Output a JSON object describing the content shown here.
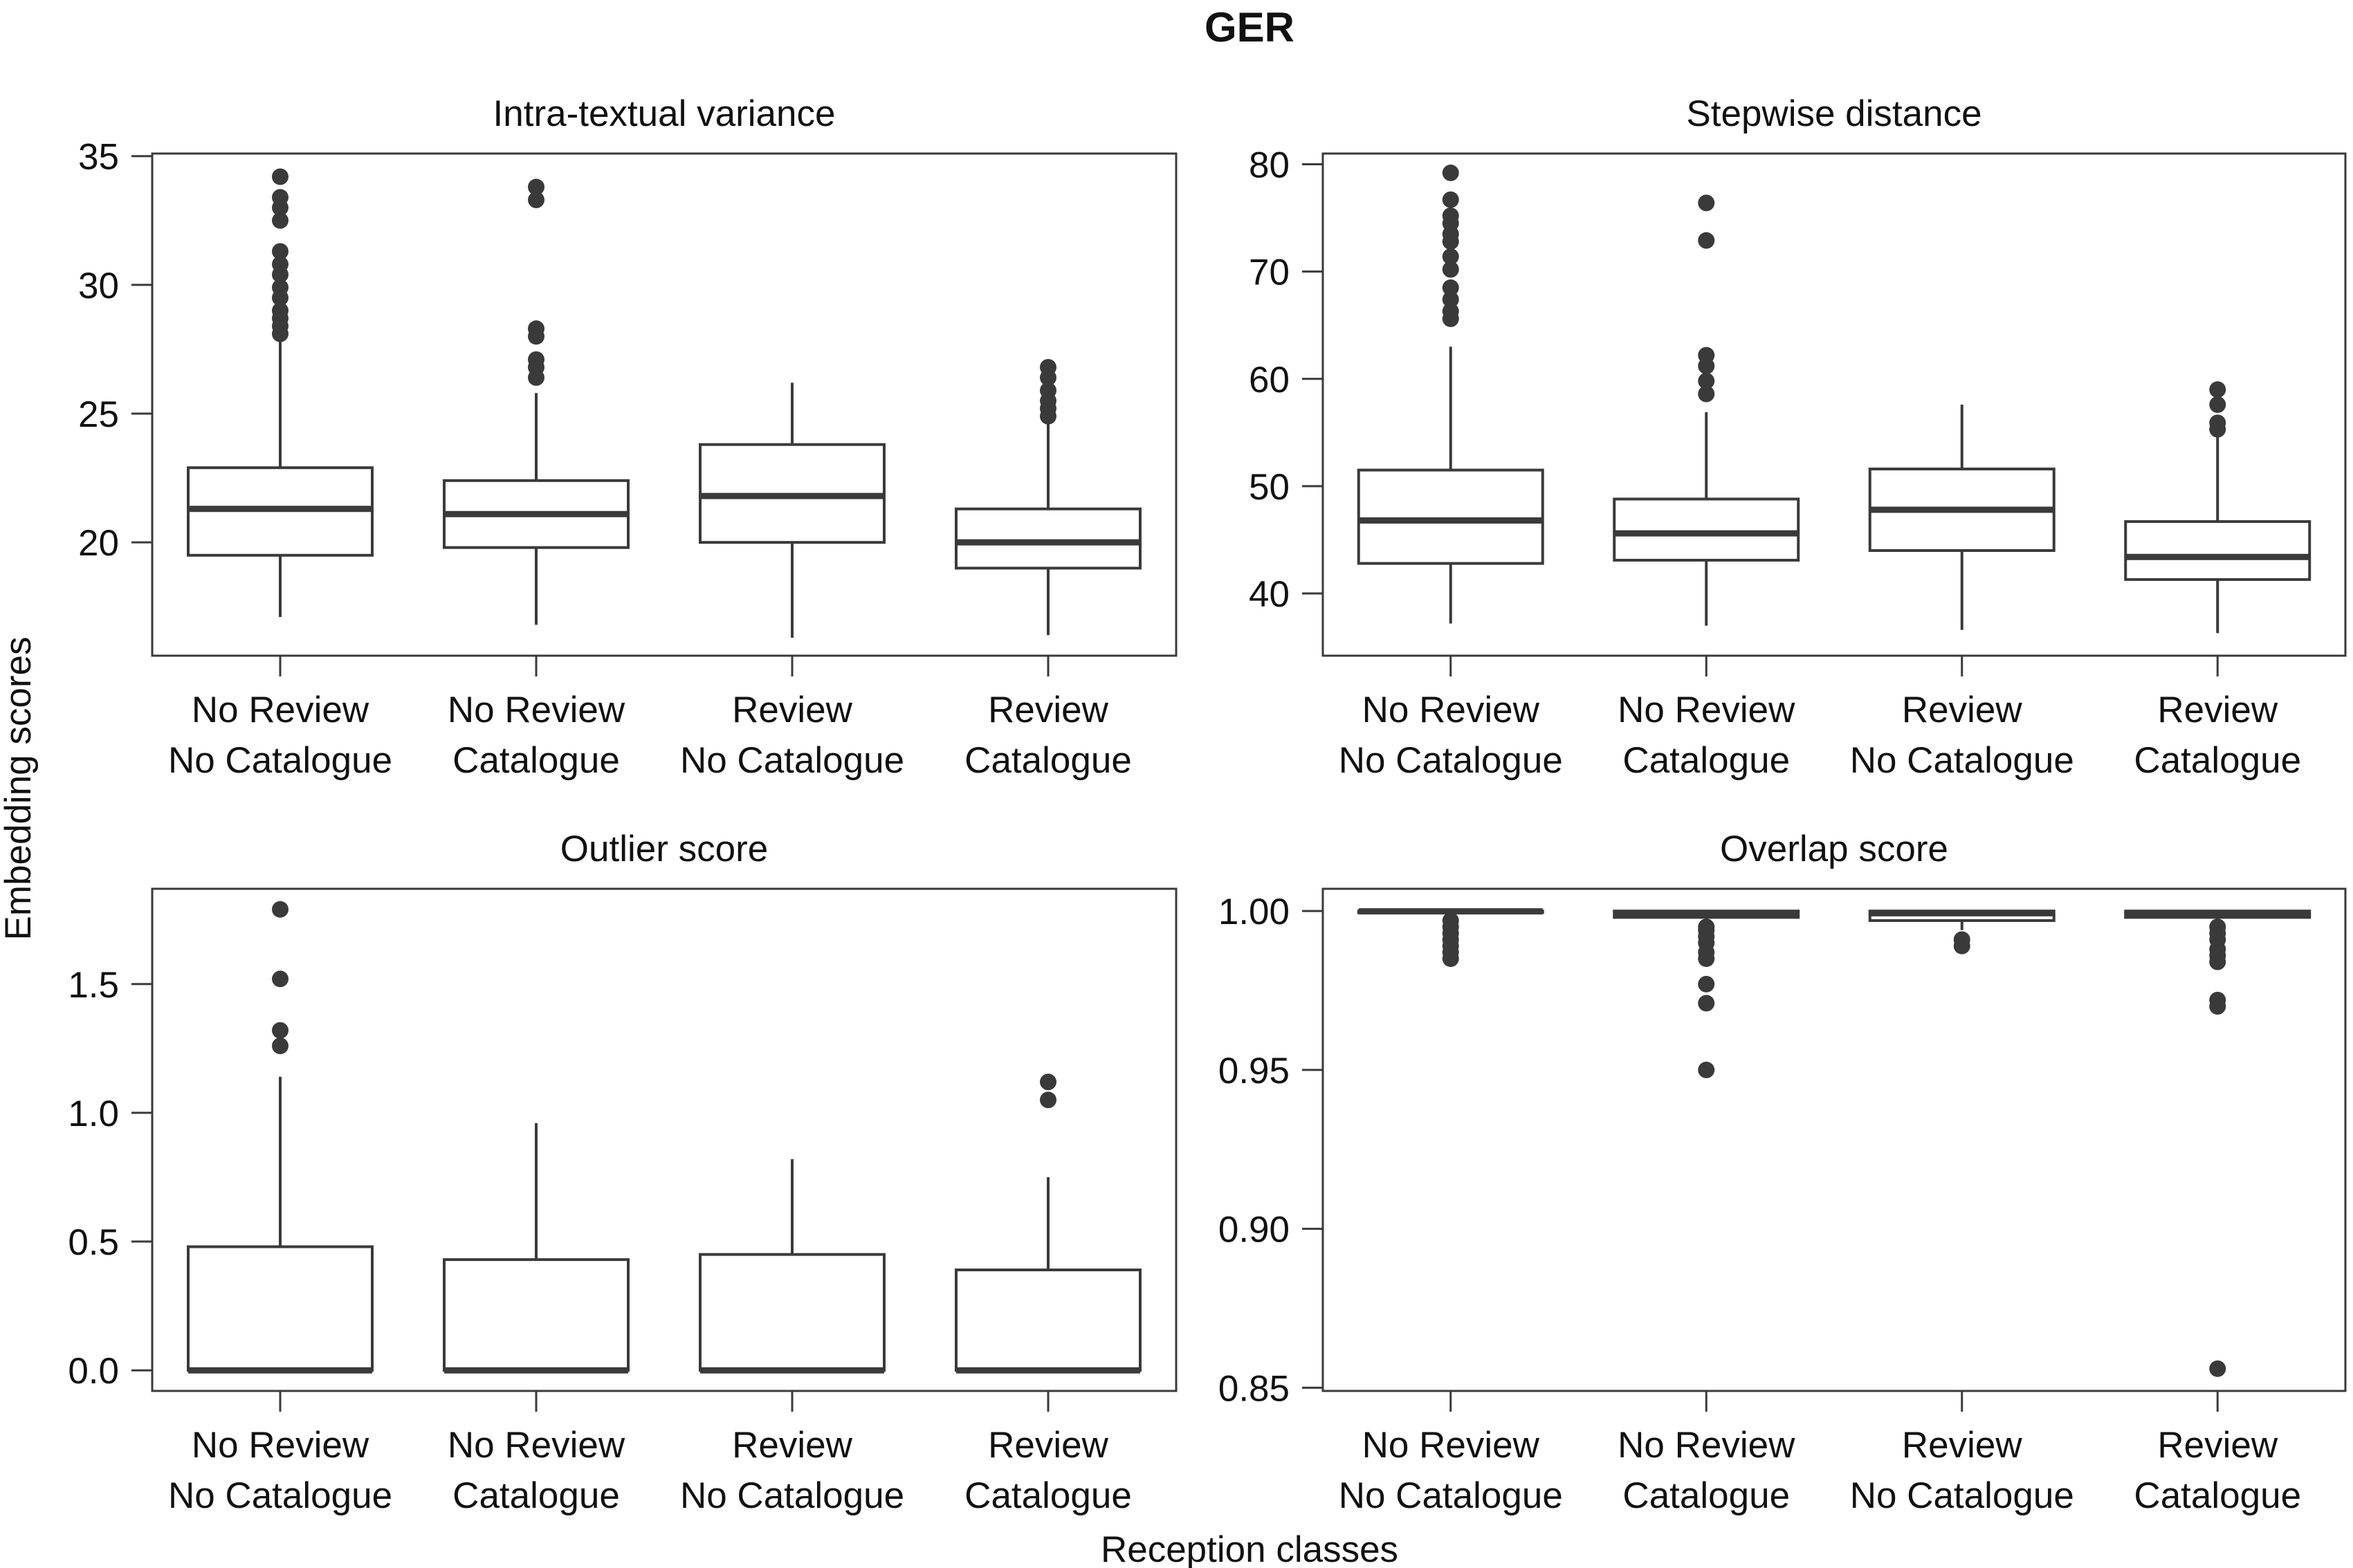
{
  "figure": {
    "title": "GER",
    "ylabel": "Embedding scores",
    "xlabel": "Reception classes",
    "colors": {
      "line": "#3a3a3a",
      "box_fill": "#ffffff",
      "outlier": "#3a3a3a"
    }
  },
  "chart_data": [
    {
      "type": "box",
      "title": "Intra-textual variance",
      "categories": [
        "No Review\nNo Catalogue",
        "No Review\nCatalogue",
        "Review\nNo Catalogue",
        "Review\nCatalogue"
      ],
      "ylim": [
        15.6,
        35.1
      ],
      "yticks": [
        20,
        25,
        30,
        35
      ],
      "ytick_labels": [
        "20",
        "25",
        "30",
        "35"
      ],
      "boxes": [
        {
          "whislo": 17.1,
          "q1": 19.5,
          "med": 21.3,
          "q3": 22.9,
          "whishi": 28.0,
          "fliers": [
            28.1,
            28.4,
            28.7,
            29.0,
            29.5,
            29.9,
            30.4,
            30.8,
            31.3,
            32.5,
            33.0,
            33.4,
            34.2
          ]
        },
        {
          "whislo": 16.8,
          "q1": 19.8,
          "med": 21.1,
          "q3": 22.4,
          "whishi": 25.8,
          "fliers": [
            26.4,
            26.8,
            27.1,
            28.0,
            28.3,
            33.3,
            33.8
          ]
        },
        {
          "whislo": 16.3,
          "q1": 20.0,
          "med": 21.8,
          "q3": 23.8,
          "whishi": 26.2,
          "fliers": []
        },
        {
          "whislo": 16.4,
          "q1": 19.0,
          "med": 20.0,
          "q3": 21.3,
          "whishi": 24.6,
          "fliers": [
            24.9,
            25.2,
            25.5,
            25.9,
            26.4,
            26.8
          ]
        }
      ]
    },
    {
      "type": "box",
      "title": "Stepwise distance",
      "categories": [
        "No Review\nNo Catalogue",
        "No Review\nCatalogue",
        "Review\nNo Catalogue",
        "Review\nCatalogue"
      ],
      "ylim": [
        34.2,
        81.0
      ],
      "yticks": [
        40,
        50,
        60,
        70,
        80
      ],
      "ytick_labels": [
        "40",
        "50",
        "60",
        "70",
        "80"
      ],
      "boxes": [
        {
          "whislo": 37.2,
          "q1": 42.8,
          "med": 46.8,
          "q3": 51.5,
          "whishi": 63.0,
          "fliers": [
            65.6,
            66.3,
            67.4,
            68.5,
            70.2,
            71.4,
            72.8,
            73.5,
            74.5,
            75.2,
            76.7,
            79.2
          ]
        },
        {
          "whislo": 37.0,
          "q1": 43.1,
          "med": 45.6,
          "q3": 48.8,
          "whishi": 56.9,
          "fliers": [
            58.6,
            59.8,
            61.2,
            62.2,
            72.9,
            76.4
          ]
        },
        {
          "whislo": 36.6,
          "q1": 44.0,
          "med": 47.8,
          "q3": 51.6,
          "whishi": 57.6,
          "fliers": []
        },
        {
          "whislo": 36.3,
          "q1": 41.3,
          "med": 43.4,
          "q3": 46.7,
          "whishi": 54.9,
          "fliers": [
            55.3,
            55.9,
            57.6,
            59.0
          ]
        }
      ]
    },
    {
      "type": "box",
      "title": "Outlier score",
      "categories": [
        "No Review\nNo Catalogue",
        "No Review\nCatalogue",
        "Review\nNo Catalogue",
        "Review\nCatalogue"
      ],
      "ylim": [
        -0.08,
        1.87
      ],
      "yticks": [
        0.0,
        0.5,
        1.0,
        1.5
      ],
      "ytick_labels": [
        "0.0",
        "0.5",
        "1.0",
        "1.5"
      ],
      "boxes": [
        {
          "whislo": 0.0,
          "q1": 0.0,
          "med": 0.0,
          "q3": 0.48,
          "whishi": 1.14,
          "fliers": [
            1.26,
            1.32,
            1.52,
            1.79
          ]
        },
        {
          "whislo": 0.0,
          "q1": 0.0,
          "med": 0.0,
          "q3": 0.43,
          "whishi": 0.96,
          "fliers": []
        },
        {
          "whislo": 0.0,
          "q1": 0.0,
          "med": 0.0,
          "q3": 0.45,
          "whishi": 0.82,
          "fliers": []
        },
        {
          "whislo": 0.0,
          "q1": 0.0,
          "med": 0.0,
          "q3": 0.39,
          "whishi": 0.75,
          "fliers": [
            1.05,
            1.12
          ]
        }
      ]
    },
    {
      "type": "box",
      "title": "Overlap score",
      "categories": [
        "No Review\nNo Catalogue",
        "No Review\nCatalogue",
        "Review\nNo Catalogue",
        "Review\nCatalogue"
      ],
      "ylim": [
        0.849,
        1.007
      ],
      "yticks": [
        0.85,
        0.9,
        0.95,
        1.0
      ],
      "ytick_labels": [
        "0.85",
        "0.90",
        "0.95",
        "1.00"
      ],
      "boxes": [
        {
          "whislo": 0.9985,
          "q1": 0.9995,
          "med": 0.9999,
          "q3": 1.0,
          "whishi": 1.0,
          "fliers": [
            0.985,
            0.987,
            0.989,
            0.991,
            0.993,
            0.995,
            0.997
          ]
        },
        {
          "whislo": 0.9965,
          "q1": 0.998,
          "med": 0.9992,
          "q3": 1.0,
          "whishi": 1.0,
          "fliers": [
            0.95,
            0.971,
            0.977,
            0.985,
            0.987,
            0.99,
            0.992,
            0.994,
            0.995
          ]
        },
        {
          "whislo": 0.994,
          "q1": 0.997,
          "med": 0.9993,
          "q3": 1.0,
          "whishi": 1.0,
          "fliers": [
            0.989,
            0.991
          ]
        },
        {
          "whislo": 0.9965,
          "q1": 0.998,
          "med": 0.9993,
          "q3": 1.0,
          "whishi": 1.0,
          "fliers": [
            0.856,
            0.97,
            0.972,
            0.984,
            0.986,
            0.988,
            0.991,
            0.993,
            0.995
          ]
        }
      ]
    }
  ]
}
